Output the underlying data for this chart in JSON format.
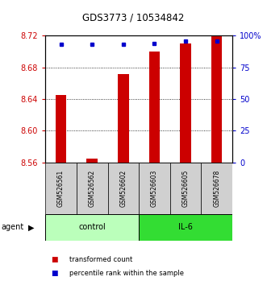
{
  "title": "GDS3773 / 10534842",
  "samples": [
    "GSM526561",
    "GSM526562",
    "GSM526602",
    "GSM526603",
    "GSM526605",
    "GSM526678"
  ],
  "bar_values": [
    8.645,
    8.565,
    8.672,
    8.7,
    8.71,
    8.72
  ],
  "percentile_values": [
    93,
    93,
    93,
    94,
    96,
    96
  ],
  "bar_bottom": 8.56,
  "ylim": [
    8.56,
    8.72
  ],
  "y2lim": [
    0,
    100
  ],
  "yticks": [
    8.56,
    8.6,
    8.64,
    8.68,
    8.72
  ],
  "y2ticks": [
    0,
    25,
    50,
    75,
    100
  ],
  "y2ticklabels": [
    "0",
    "25",
    "50",
    "75",
    "100%"
  ],
  "bar_color": "#cc0000",
  "dot_color": "#0000cc",
  "groups": [
    {
      "label": "control",
      "color": "#bbffbb"
    },
    {
      "label": "IL-6",
      "color": "#33dd33"
    }
  ],
  "agent_label": "agent",
  "legend_items": [
    {
      "label": "transformed count",
      "color": "#cc0000"
    },
    {
      "label": "percentile rank within the sample",
      "color": "#0000cc"
    }
  ],
  "bar_width": 0.35,
  "tick_label_color_left": "#cc0000",
  "tick_label_color_right": "#0000cc"
}
